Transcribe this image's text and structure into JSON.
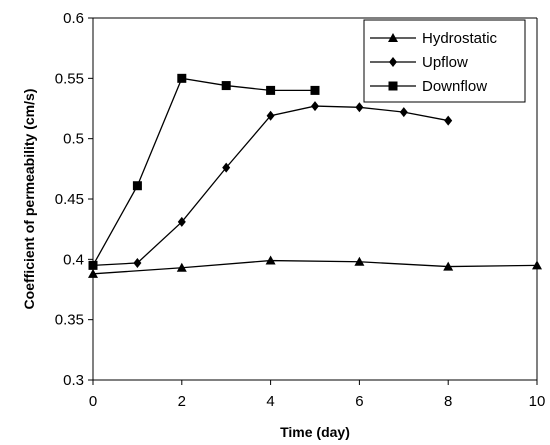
{
  "chart_data": {
    "type": "line",
    "title": "",
    "xlabel": "Time (day)",
    "ylabel": "Coefficient of permeability (cm/s)",
    "xlim": [
      0,
      10
    ],
    "ylim": [
      0.3,
      0.6
    ],
    "x_ticks": [
      "0",
      "2",
      "4",
      "6",
      "8",
      "10"
    ],
    "y_ticks": [
      "0.3",
      "0.35",
      "0.4",
      "0.45",
      "0.5",
      "0.55",
      "0.6"
    ],
    "grid": false,
    "legend_position": "top-right",
    "series": [
      {
        "name": "Hydrostatic",
        "marker": "triangle",
        "x": [
          0,
          2,
          4,
          6,
          8,
          10
        ],
        "y": [
          0.388,
          0.393,
          0.399,
          0.398,
          0.394,
          0.395
        ]
      },
      {
        "name": "Upflow",
        "marker": "diamond",
        "x": [
          0,
          1,
          2,
          3,
          4,
          5,
          6,
          7,
          8
        ],
        "y": [
          0.395,
          0.397,
          0.431,
          0.476,
          0.519,
          0.527,
          0.526,
          0.522,
          0.515
        ]
      },
      {
        "name": "Downflow",
        "marker": "square",
        "x": [
          0,
          1,
          2,
          3,
          4,
          5
        ],
        "y": [
          0.395,
          0.461,
          0.55,
          0.544,
          0.54,
          0.54
        ]
      }
    ]
  }
}
